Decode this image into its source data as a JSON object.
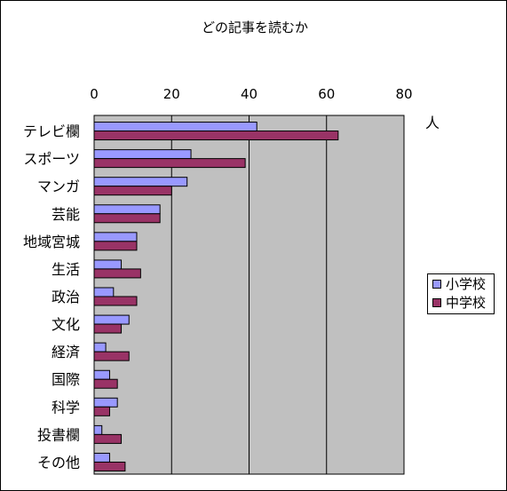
{
  "chart_data": {
    "type": "bar",
    "orientation": "horizontal",
    "title": "どの記事を読むか",
    "unit_label": "人",
    "categories": [
      "テレビ欄",
      "スポーツ",
      "マンガ",
      "芸能",
      "地域宮城",
      "生活",
      "政治",
      "文化",
      "経済",
      "国際",
      "科学",
      "投書欄",
      "その他"
    ],
    "series": [
      {
        "name": "小学校",
        "color": "#9999ff",
        "values": [
          42,
          25,
          24,
          17,
          11,
          7,
          5,
          9,
          3,
          4,
          6,
          2,
          4
        ]
      },
      {
        "name": "中学校",
        "color": "#993366",
        "values": [
          63,
          39,
          20,
          17,
          11,
          12,
          11,
          7,
          9,
          6,
          4,
          7,
          8
        ]
      }
    ],
    "xlim": [
      0,
      80
    ],
    "xticks": [
      "0",
      "20",
      "40",
      "60",
      "80"
    ],
    "grid": true,
    "plot_background": "#c0c0c0",
    "legend_position": "right"
  }
}
